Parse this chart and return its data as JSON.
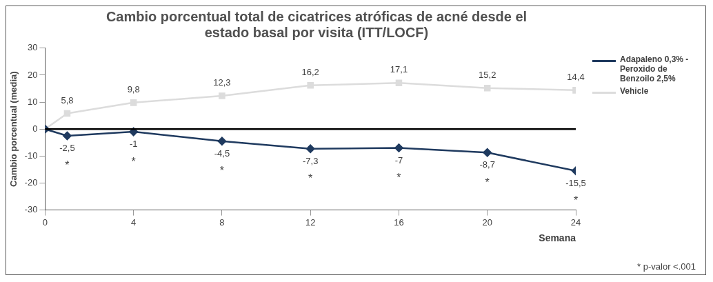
{
  "chart_data": {
    "type": "line",
    "title": "Cambio porcentual total de cicatrices atróficas de acné desde el estado basal por visita (ITT/LOCF)",
    "xlabel": "Semana",
    "ylabel": "Cambio porcentual (media)",
    "x": [
      0,
      1,
      4,
      8,
      12,
      16,
      20,
      24
    ],
    "series": [
      {
        "name": "Adapaleno 0,3% - Peroxido de Benzoilo 2,5%",
        "color": "#1f3a5f",
        "marker": "diamond",
        "values": [
          0,
          -2.5,
          -1,
          -4.5,
          -7.3,
          -7,
          -8.7,
          -15.5
        ],
        "value_labels": [
          null,
          "-2,5",
          "-1",
          "-4,5",
          "-7,3",
          "-7",
          "-8,7",
          "-15,5"
        ]
      },
      {
        "name": "Vehicle",
        "color": "#dcdcdc",
        "marker": "square",
        "values": [
          0,
          5.8,
          9.8,
          12.3,
          16.2,
          17.1,
          15.2,
          14.4
        ],
        "value_labels": [
          null,
          "5,8",
          "9,8",
          "12,3",
          "16,2",
          "17,1",
          "15,2",
          "14,4"
        ]
      }
    ],
    "xlim": [
      0,
      24
    ],
    "xticks": [
      0,
      4,
      8,
      12,
      16,
      20,
      24
    ],
    "ylim": [
      -30,
      30
    ],
    "yticks": [
      -30,
      -20,
      -10,
      0,
      10,
      20,
      30
    ],
    "grid": false,
    "legend": "right",
    "line_style": "solid",
    "ref_lines": [
      {
        "axis": "y",
        "value": 0,
        "color": "#000000"
      }
    ],
    "annotations": [
      {
        "text": "*",
        "x": 1,
        "y": -2.5
      },
      {
        "text": "*",
        "x": 4,
        "y": -1
      },
      {
        "text": "*",
        "x": 8,
        "y": -4.5
      },
      {
        "text": "*",
        "x": 12,
        "y": -7.3
      },
      {
        "text": "*",
        "x": 16,
        "y": -7
      },
      {
        "text": "*",
        "x": 20,
        "y": -8.7
      },
      {
        "text": "*",
        "x": 24,
        "y": -15.5
      },
      "* p-valor <.001"
    ]
  }
}
